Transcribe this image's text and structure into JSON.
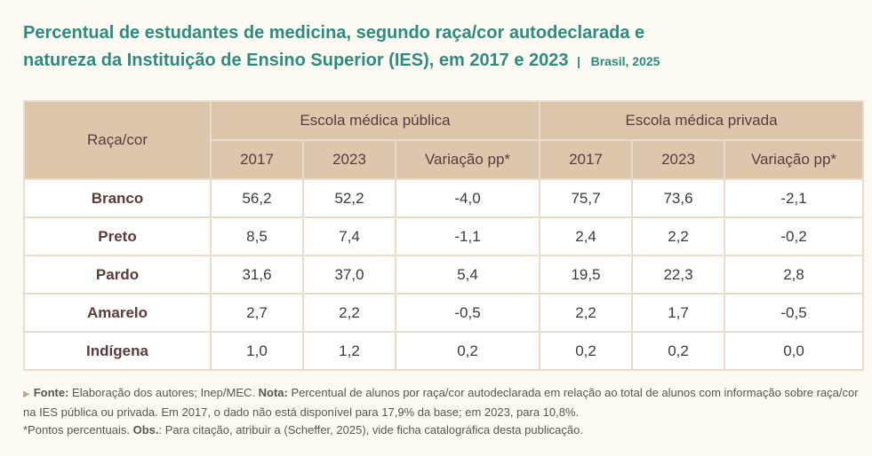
{
  "title": {
    "line1": "Percentual de estudantes de medicina, segundo raça/cor autodeclarada e",
    "line2": "natureza da Instituição de Ensino Superior (IES), em 2017 e 2023",
    "separator": "|",
    "place": "Brasil, 2025"
  },
  "table": {
    "race_header": "Raça/cor",
    "group_public": "Escola médica pública",
    "group_private": "Escola médica privada",
    "sub": [
      "2017",
      "2023",
      "Variação pp*",
      "2017",
      "2023",
      "Variação pp*"
    ],
    "rows": [
      {
        "label": "Branco",
        "values": [
          "56,2",
          "52,2",
          "-4,0",
          "75,7",
          "73,6",
          "-2,1"
        ]
      },
      {
        "label": "Preto",
        "values": [
          "8,5",
          "7,4",
          "-1,1",
          "2,4",
          "2,2",
          "-0,2"
        ]
      },
      {
        "label": "Pardo",
        "values": [
          "31,6",
          "37,0",
          "5,4",
          "19,5",
          "22,3",
          "2,8"
        ]
      },
      {
        "label": "Amarelo",
        "values": [
          "2,7",
          "2,2",
          "-0,5",
          "2,2",
          "1,7",
          "-0,5"
        ]
      },
      {
        "label": "Indígena",
        "values": [
          "1,0",
          "1,2",
          "0,2",
          "0,2",
          "0,2",
          "0,0"
        ]
      }
    ]
  },
  "note": {
    "marker": "▶",
    "fonte_label": "Fonte:",
    "fonte_text": " Elaboração dos autores; Inep/MEC. ",
    "nota_label": "Nota:",
    "nota_text": " Percentual de alunos por raça/cor autodeclarada em relação ao total de alunos com informação sobre raça/cor na IES pública ou privada. Em 2017, o dado não está disponível para 17,9% da base; em 2023, para 10,8%.",
    "asterisk_text": "*Pontos percentuais. ",
    "obs_label": "Obs.",
    "obs_text": ": Para citação, atribuir a (Scheffer, 2025), vide ficha catalográfica desta publicação."
  }
}
